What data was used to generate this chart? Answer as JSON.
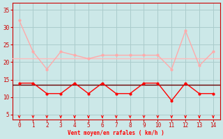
{
  "x": [
    0,
    1,
    2,
    3,
    4,
    5,
    6,
    7,
    8,
    9,
    10,
    11,
    12,
    13,
    14
  ],
  "gusts": [
    32,
    23,
    18,
    23,
    22,
    21,
    22,
    22,
    22,
    22,
    22,
    18,
    29,
    19,
    23
  ],
  "wind": [
    14,
    14,
    11,
    11,
    14,
    11,
    14,
    11,
    11,
    14,
    14,
    9,
    14,
    11,
    11
  ],
  "avg_line": 13.5,
  "avg_gusts_line": 21.0,
  "xlabel": "Vent moyen/en rafales ( km/h )",
  "xlim": [
    -0.5,
    14.5
  ],
  "ylim": [
    3.5,
    37
  ],
  "yticks": [
    5,
    10,
    15,
    20,
    25,
    30,
    35
  ],
  "xticks": [
    0,
    1,
    2,
    3,
    4,
    5,
    6,
    7,
    8,
    9,
    10,
    11,
    12,
    13,
    14
  ],
  "bg_color": "#cce8e8",
  "grid_color": "#aacccc",
  "wind_color": "#ff0000",
  "gusts_color": "#ffaaaa",
  "avg_color": "#660000",
  "avg_gusts_color": "#ffbbbb",
  "arrow_color": "#ff0000",
  "tick_color": "#cc0000",
  "spine_color": "#cc0000"
}
